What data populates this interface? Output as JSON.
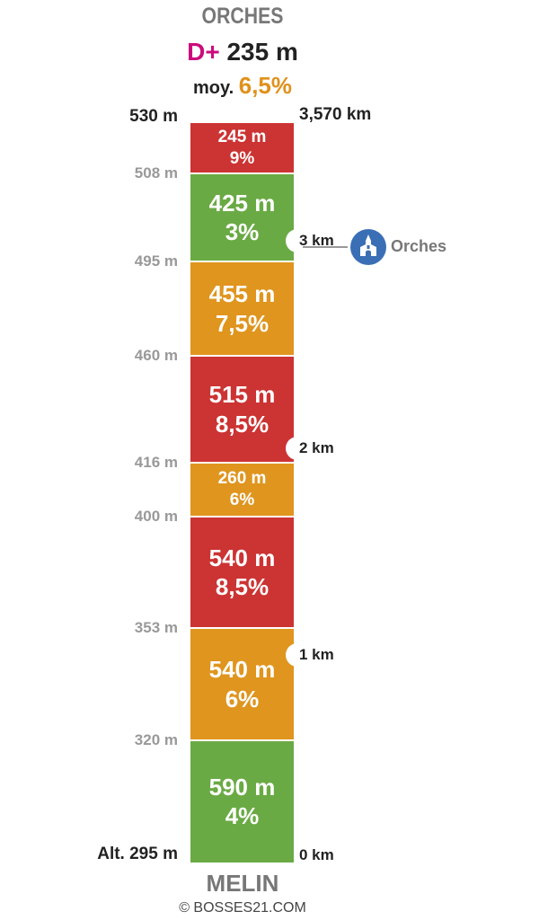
{
  "header": {
    "title": "ORCHES",
    "dplus_prefix": "D+",
    "dplus_value": "235 m",
    "moy_prefix": "moy.",
    "moy_value": "6,5%"
  },
  "footer": {
    "title": "MELIN",
    "copyright": "© BOSSES21.COM"
  },
  "colors": {
    "red": "#cc3333",
    "orange": "#df951e",
    "green": "#6aaa44",
    "dplus": "#cc0a7d",
    "poi": "#3a6fb5"
  },
  "chart_data": {
    "type": "bar",
    "orientation": "vertical-stacked-climb-profile",
    "total_distance_label": "3,570 km",
    "start_altitude_label": "Alt. 295 m",
    "end_altitude_label": "530 m",
    "segments": [
      {
        "length_m": 590,
        "length_label": "590 m",
        "grade": 4,
        "grade_label": "4%",
        "color": "green",
        "top_alt_label": "320 m"
      },
      {
        "length_m": 540,
        "length_label": "540 m",
        "grade": 6,
        "grade_label": "6%",
        "color": "orange",
        "top_alt_label": "353 m"
      },
      {
        "length_m": 540,
        "length_label": "540 m",
        "grade": 8.5,
        "grade_label": "8,5%",
        "color": "red",
        "top_alt_label": "400 m"
      },
      {
        "length_m": 260,
        "length_label": "260 m",
        "grade": 6,
        "grade_label": "6%",
        "color": "orange",
        "top_alt_label": "416 m"
      },
      {
        "length_m": 515,
        "length_label": "515 m",
        "grade": 8.5,
        "grade_label": "8,5%",
        "color": "red",
        "top_alt_label": "460 m"
      },
      {
        "length_m": 455,
        "length_label": "455 m",
        "grade": 7.5,
        "grade_label": "7,5%",
        "color": "orange",
        "top_alt_label": "495 m"
      },
      {
        "length_m": 425,
        "length_label": "425 m",
        "grade": 3,
        "grade_label": "3%",
        "color": "green",
        "top_alt_label": "508 m"
      },
      {
        "length_m": 245,
        "length_label": "245 m",
        "grade": 9,
        "grade_label": "9%",
        "color": "red",
        "top_alt_label": "530 m"
      }
    ],
    "km_markers": [
      {
        "km": 0,
        "label": "0 km"
      },
      {
        "km": 1,
        "label": "1 km"
      },
      {
        "km": 2,
        "label": "2 km"
      },
      {
        "km": 3,
        "label": "3 km"
      }
    ],
    "poi": [
      {
        "km": 2.97,
        "label": "Orches",
        "icon": "church-icon"
      }
    ]
  }
}
